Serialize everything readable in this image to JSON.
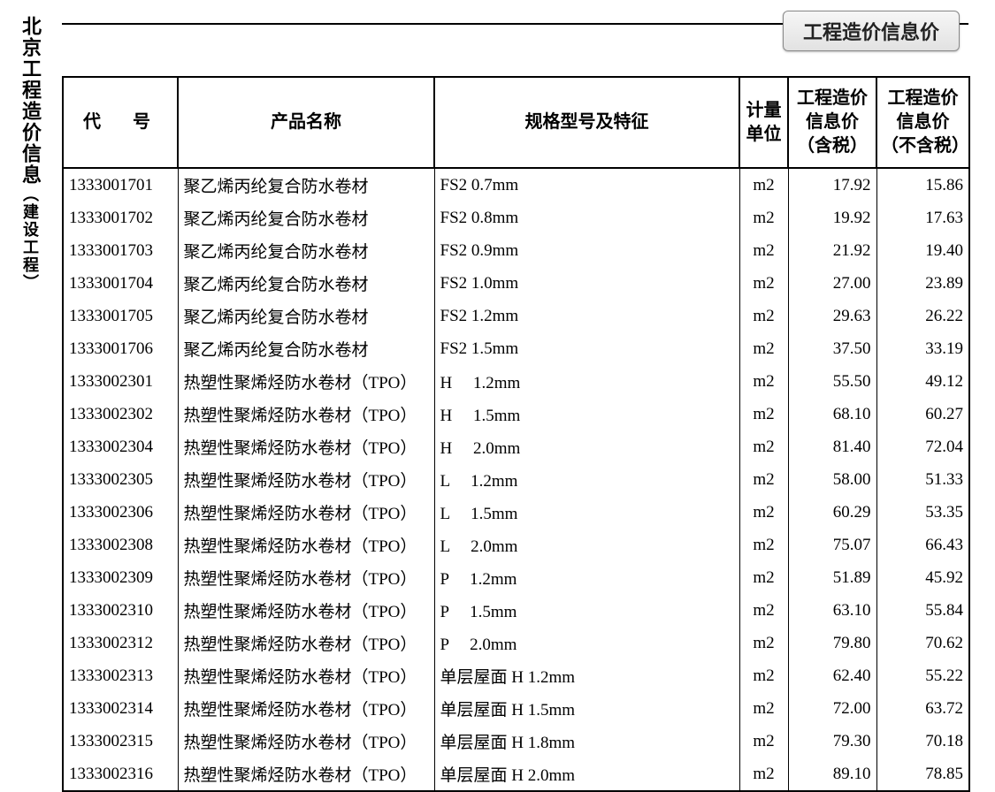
{
  "sidebar_title_main": "北京工程造价信息",
  "sidebar_title_sub": "（建设工程）",
  "tab_label": "工程造价信息价",
  "columns": {
    "code": "代　号",
    "name": "产品名称",
    "spec": "规格型号及特征",
    "unit": "计量单位",
    "price_tax": "工程造价信息价（含税）",
    "price_notax": "工程造价信息价（不含税）"
  },
  "rows": [
    {
      "code": "1333001701",
      "name": "聚乙烯丙纶复合防水卷材",
      "spec": "FS2 0.7mm",
      "unit": "m2",
      "p1": "17.92",
      "p2": "15.86"
    },
    {
      "code": "1333001702",
      "name": "聚乙烯丙纶复合防水卷材",
      "spec": "FS2 0.8mm",
      "unit": "m2",
      "p1": "19.92",
      "p2": "17.63"
    },
    {
      "code": "1333001703",
      "name": "聚乙烯丙纶复合防水卷材",
      "spec": "FS2 0.9mm",
      "unit": "m2",
      "p1": "21.92",
      "p2": "19.40"
    },
    {
      "code": "1333001704",
      "name": "聚乙烯丙纶复合防水卷材",
      "spec": "FS2 1.0mm",
      "unit": "m2",
      "p1": "27.00",
      "p2": "23.89"
    },
    {
      "code": "1333001705",
      "name": "聚乙烯丙纶复合防水卷材",
      "spec": "FS2 1.2mm",
      "unit": "m2",
      "p1": "29.63",
      "p2": "26.22"
    },
    {
      "code": "1333001706",
      "name": "聚乙烯丙纶复合防水卷材",
      "spec": "FS2 1.5mm",
      "unit": "m2",
      "p1": "37.50",
      "p2": "33.19"
    },
    {
      "code": "1333002301",
      "name": "热塑性聚烯烃防水卷材（TPO）",
      "spec": "H　 1.2mm",
      "unit": "m2",
      "p1": "55.50",
      "p2": "49.12"
    },
    {
      "code": "1333002302",
      "name": "热塑性聚烯烃防水卷材（TPO）",
      "spec": "H　 1.5mm",
      "unit": "m2",
      "p1": "68.10",
      "p2": "60.27"
    },
    {
      "code": "1333002304",
      "name": "热塑性聚烯烃防水卷材（TPO）",
      "spec": "H　 2.0mm",
      "unit": "m2",
      "p1": "81.40",
      "p2": "72.04"
    },
    {
      "code": "1333002305",
      "name": "热塑性聚烯烃防水卷材（TPO）",
      "spec": "L　 1.2mm",
      "unit": "m2",
      "p1": "58.00",
      "p2": "51.33"
    },
    {
      "code": "1333002306",
      "name": "热塑性聚烯烃防水卷材（TPO）",
      "spec": "L　 1.5mm",
      "unit": "m2",
      "p1": "60.29",
      "p2": "53.35"
    },
    {
      "code": "1333002308",
      "name": "热塑性聚烯烃防水卷材（TPO）",
      "spec": "L　 2.0mm",
      "unit": "m2",
      "p1": "75.07",
      "p2": "66.43"
    },
    {
      "code": "1333002309",
      "name": "热塑性聚烯烃防水卷材（TPO）",
      "spec": "P　 1.2mm",
      "unit": "m2",
      "p1": "51.89",
      "p2": "45.92"
    },
    {
      "code": "1333002310",
      "name": "热塑性聚烯烃防水卷材（TPO）",
      "spec": "P　 1.5mm",
      "unit": "m2",
      "p1": "63.10",
      "p2": "55.84"
    },
    {
      "code": "1333002312",
      "name": "热塑性聚烯烃防水卷材（TPO）",
      "spec": "P　 2.0mm",
      "unit": "m2",
      "p1": "79.80",
      "p2": "70.62"
    },
    {
      "code": "1333002313",
      "name": "热塑性聚烯烃防水卷材（TPO）",
      "spec": "单层屋面  H 1.2mm",
      "unit": "m2",
      "p1": "62.40",
      "p2": "55.22"
    },
    {
      "code": "1333002314",
      "name": "热塑性聚烯烃防水卷材（TPO）",
      "spec": "单层屋面  H 1.5mm",
      "unit": "m2",
      "p1": "72.00",
      "p2": "63.72"
    },
    {
      "code": "1333002315",
      "name": "热塑性聚烯烃防水卷材（TPO）",
      "spec": "单层屋面  H 1.8mm",
      "unit": "m2",
      "p1": "79.30",
      "p2": "70.18"
    },
    {
      "code": "1333002316",
      "name": "热塑性聚烯烃防水卷材（TPO）",
      "spec": "单层屋面  H 2.0mm",
      "unit": "m2",
      "p1": "89.10",
      "p2": "78.85"
    }
  ]
}
